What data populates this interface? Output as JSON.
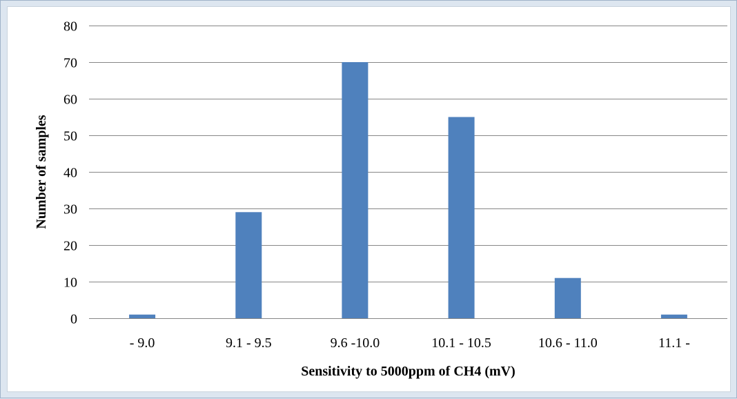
{
  "chart_data": {
    "type": "bar",
    "title": "",
    "xlabel": "Sensitivity to 5000ppm of CH4 (mV)",
    "ylabel": "Number of samples",
    "categories": [
      "- 9.0",
      "9.1 - 9.5",
      "9.6 -10.0",
      "10.1 - 10.5",
      "10.6 - 11.0",
      "11.1 -"
    ],
    "values": [
      1,
      29,
      70,
      55,
      11,
      1
    ],
    "ylim": [
      0,
      80
    ],
    "yticks": [
      0,
      10,
      20,
      30,
      40,
      50,
      60,
      70,
      80
    ],
    "grid": true,
    "legend": "none",
    "bar_color": "#4f81bd",
    "grid_color": "#868686"
  }
}
